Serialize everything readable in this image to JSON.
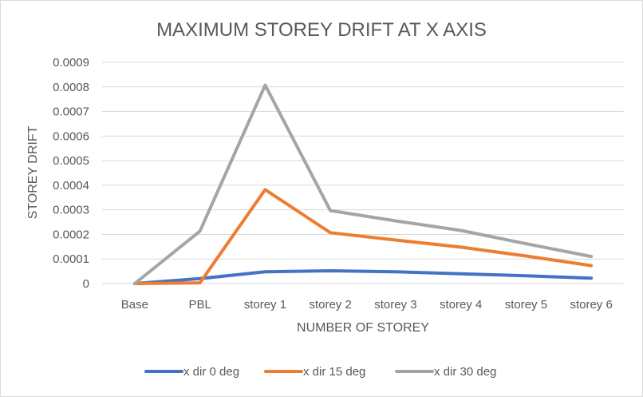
{
  "chart_data": {
    "type": "line",
    "title": "MAXIMUM STOREY DRIFT AT X AXIS",
    "xlabel": "NUMBER OF STOREY",
    "ylabel": "STOREY DRIFT",
    "categories": [
      "Base",
      "PBL",
      "storey 1",
      "storey 2",
      "storey 3",
      "storey 4",
      "storey 5",
      "storey 6"
    ],
    "ylim": [
      0,
      0.0009
    ],
    "yticks": [
      "0",
      "0.0001",
      "0.0002",
      "0.0003",
      "0.0004",
      "0.0005",
      "0.0006",
      "0.0007",
      "0.0008",
      "0.0009"
    ],
    "grid": true,
    "legend_position": "bottom",
    "series": [
      {
        "name": "x dir 0 deg",
        "color": "#4472c4",
        "values": [
          0,
          2e-05,
          4.8e-05,
          5.2e-05,
          4.8e-05,
          4e-05,
          3.2e-05,
          2.2e-05
        ]
      },
      {
        "name": "x dir 15 deg",
        "color": "#ed7d31",
        "values": [
          0,
          3e-06,
          0.000382,
          0.000207,
          0.000177,
          0.000148,
          0.000112,
          7.3e-05
        ]
      },
      {
        "name": "x dir 30 deg",
        "color": "#a5a5a5",
        "values": [
          0,
          0.000213,
          0.000807,
          0.000297,
          0.000255,
          0.000216,
          0.000162,
          0.00011
        ]
      }
    ]
  }
}
